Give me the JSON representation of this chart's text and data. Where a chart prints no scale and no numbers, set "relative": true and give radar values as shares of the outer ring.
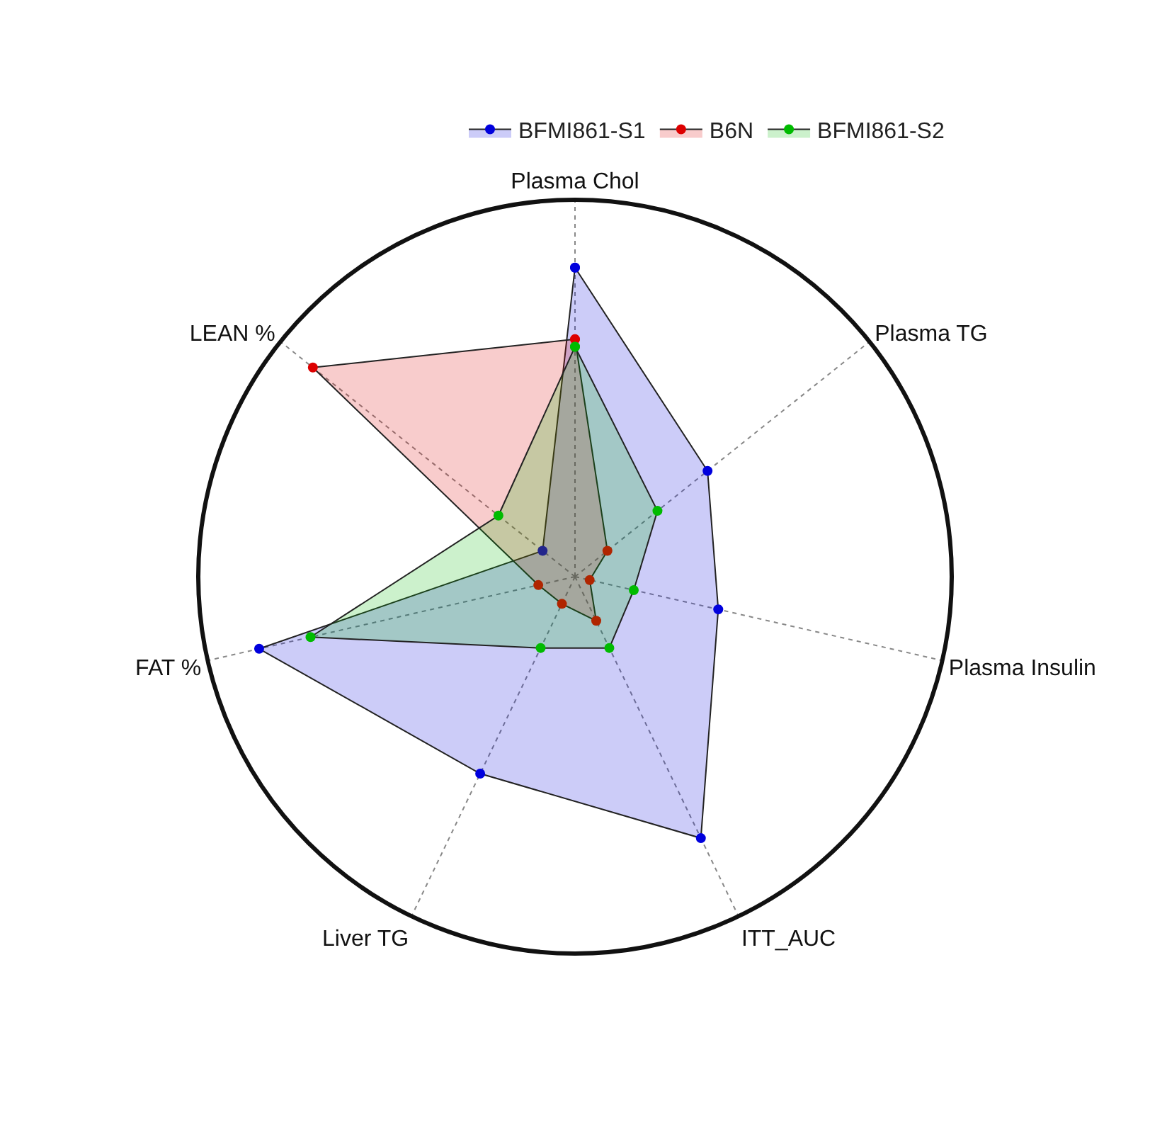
{
  "chart_data": {
    "type": "radar",
    "relative": true,
    "categories": [
      "Plasma Chol",
      "Plasma TG",
      "Plasma Insulin",
      "ITT_AUC",
      "Liver TG",
      "FAT %",
      "LEAN %"
    ],
    "series": [
      {
        "name": "BFMI861-S1",
        "color": "#0000dd",
        "values": [
          0.82,
          0.45,
          0.39,
          0.77,
          0.58,
          0.86,
          0.11
        ]
      },
      {
        "name": "B6N",
        "color": "#dd0000",
        "values": [
          0.63,
          0.11,
          0.04,
          0.13,
          0.08,
          0.1,
          0.89
        ]
      },
      {
        "name": "BFMI861-S2",
        "color": "#00bb00",
        "values": [
          0.61,
          0.28,
          0.16,
          0.21,
          0.21,
          0.72,
          0.26
        ]
      }
    ],
    "grid": true,
    "legend": "top right",
    "marker": "circle",
    "line_style": "solid"
  }
}
